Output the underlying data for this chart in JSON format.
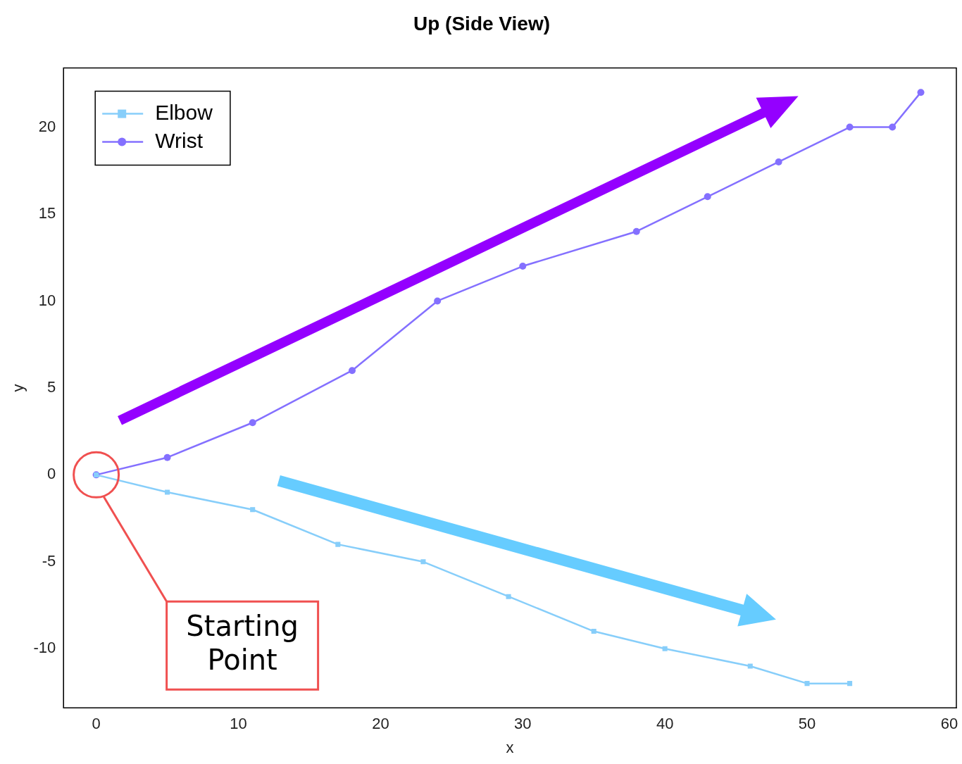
{
  "chart_data": {
    "type": "line",
    "title": "Up (Side View)",
    "xlabel": "x",
    "ylabel": "y",
    "xlim": [
      -2.3,
      60.5
    ],
    "xticks": [
      0,
      10,
      20,
      30,
      40,
      50,
      60
    ],
    "ylim": [
      -13.4,
      23.4
    ],
    "yticks": [
      -10,
      -5,
      0,
      5,
      10,
      15,
      20
    ],
    "grid": false,
    "legend": "top left",
    "series": [
      {
        "name": "Elbow",
        "color": "#87cefa",
        "marker": "square",
        "x": [
          0,
          5,
          11,
          17,
          23,
          29,
          35,
          40,
          46,
          50,
          53
        ],
        "values": [
          0,
          -1,
          -2,
          -4,
          -5,
          -7,
          -9,
          -10,
          -11,
          -12,
          -12
        ]
      },
      {
        "name": "Wrist",
        "color": "#8470ff",
        "marker": "circle",
        "x": [
          0,
          5,
          11,
          18,
          24,
          30,
          38,
          43,
          48,
          53,
          56,
          58
        ],
        "values": [
          0,
          1,
          3,
          6,
          10,
          12,
          14,
          16,
          18,
          20,
          20,
          22
        ]
      }
    ],
    "annotations": [
      "Starting Point"
    ]
  }
}
